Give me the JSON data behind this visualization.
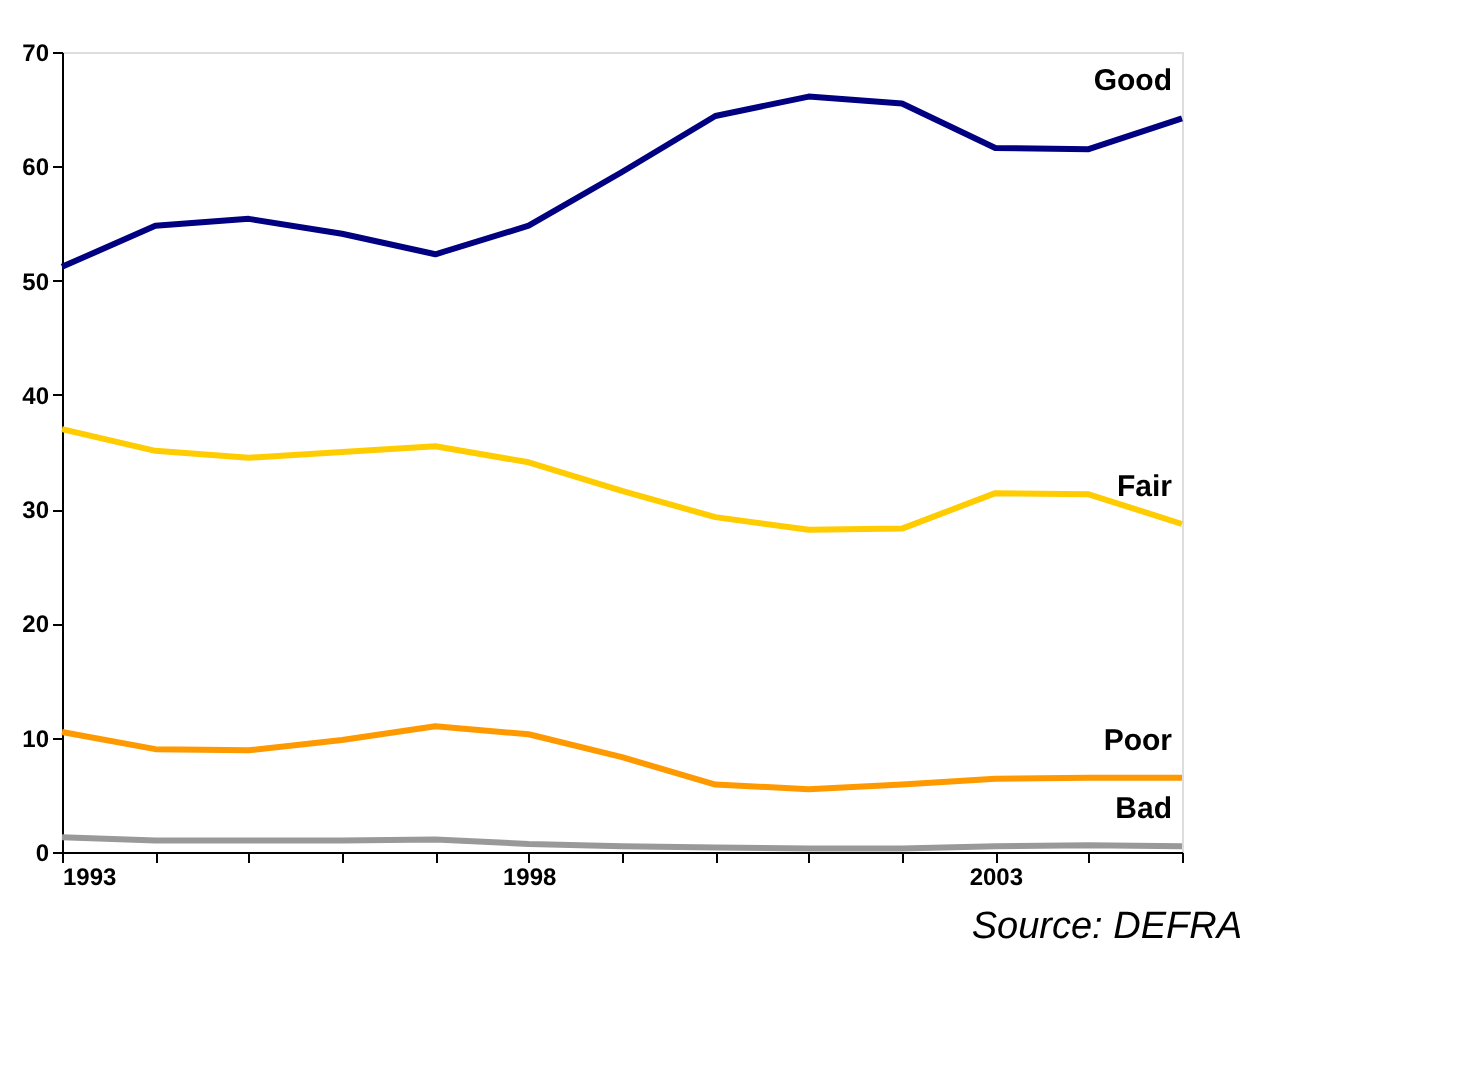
{
  "chart_data": {
    "type": "line",
    "x": [
      1993,
      1994,
      1995,
      1996,
      1997,
      1998,
      1999,
      2000,
      2001,
      2002,
      2003,
      2004,
      2005
    ],
    "series": [
      {
        "name": "Good",
        "color": "#000080",
        "values": [
          51.2,
          54.8,
          55.4,
          54.1,
          52.3,
          54.8,
          59.5,
          64.4,
          66.1,
          65.5,
          61.6,
          61.5,
          64.2
        ]
      },
      {
        "name": "Fair",
        "color": "#ffcc00",
        "values": [
          37.0,
          35.1,
          34.5,
          35.0,
          35.5,
          34.1,
          31.6,
          29.3,
          28.2,
          28.3,
          31.4,
          31.3,
          28.7
        ]
      },
      {
        "name": "Poor",
        "color": "#ff9900",
        "values": [
          10.5,
          9.0,
          8.9,
          9.8,
          11.0,
          10.3,
          8.3,
          5.9,
          5.5,
          5.9,
          6.4,
          6.5,
          6.5
        ]
      },
      {
        "name": "Bad",
        "color": "#999999",
        "values": [
          1.3,
          1.0,
          1.0,
          1.0,
          1.1,
          0.7,
          0.5,
          0.4,
          0.3,
          0.3,
          0.5,
          0.6,
          0.5
        ]
      }
    ],
    "xlim": [
      1993,
      2005
    ],
    "xticks": [
      1993,
      {
        "value": 1994,
        "label": null
      },
      {
        "value": 1995,
        "label": null
      },
      {
        "value": 1996,
        "label": null
      },
      {
        "value": 1997,
        "label": null
      },
      1998,
      {
        "value": 1999,
        "label": null
      },
      {
        "value": 2000,
        "label": null
      },
      {
        "value": 2001,
        "label": null
      },
      {
        "value": 2002,
        "label": null
      },
      2003,
      {
        "value": 2004,
        "label": null
      },
      {
        "value": 2005,
        "label": null
      }
    ],
    "ylim": [
      0,
      70
    ],
    "yticks": [
      0,
      10,
      20,
      30,
      40,
      50,
      60,
      70
    ],
    "grid": false,
    "marker": "none",
    "line_style": "solid",
    "annotations": [
      "Source: DEFRA"
    ]
  }
}
